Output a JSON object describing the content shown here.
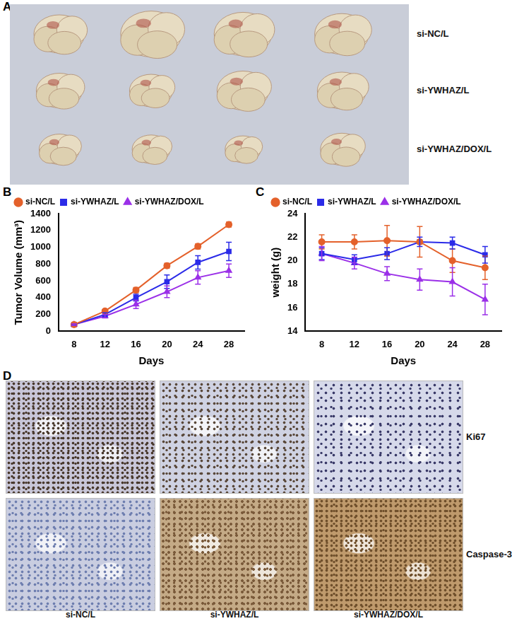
{
  "panels": [
    "A",
    "B",
    "C",
    "D"
  ],
  "tumor_photo": {
    "row_labels": [
      "si-NC/L",
      "si-YWHAZ/L",
      "si-YWHAZ/DOX/L"
    ]
  },
  "ihc_images": {
    "row_labels": [
      "Ki67",
      "Caspase-3"
    ],
    "column_labels": [
      "si-NC/L",
      "si-YWHAZ/L",
      "si-YWHAZ/DOX/L"
    ]
  },
  "chart_data": [
    {
      "type": "line",
      "x_label": "Days",
      "y_label": "Tumor Volume (mm³)",
      "x": [
        8,
        12,
        16,
        20,
        24,
        28
      ],
      "xlim": [
        6,
        30
      ],
      "xticks": [
        8,
        12,
        16,
        20,
        24,
        28
      ],
      "ylim": [
        0,
        1400
      ],
      "yticks": [
        0,
        200,
        400,
        600,
        800,
        1000,
        1200,
        1400
      ],
      "grid": false,
      "legend": "upper left",
      "series": [
        {
          "name": "si-NC/L",
          "color": "#e4612b",
          "marker": "circle",
          "values": [
            80,
            240,
            490,
            780,
            1010,
            1270
          ],
          "errors": [
            10,
            20,
            30,
            30,
            30,
            30
          ]
        },
        {
          "name": "si-YWHAZ/L",
          "color": "#2b2be8",
          "marker": "square",
          "values": [
            80,
            200,
            400,
            590,
            820,
            950
          ],
          "errors": [
            10,
            20,
            40,
            80,
            80,
            110
          ]
        },
        {
          "name": "si-YWHAZ/DOX/L",
          "color": "#9b30e8",
          "marker": "triangle",
          "values": [
            80,
            180,
            320,
            470,
            640,
            720
          ],
          "errors": [
            10,
            20,
            50,
            70,
            80,
            80
          ]
        }
      ]
    },
    {
      "type": "line",
      "x_label": "Days",
      "y_label": "weight (g)",
      "x": [
        8,
        12,
        16,
        20,
        24,
        28
      ],
      "xlim": [
        6,
        30
      ],
      "xticks": [
        8,
        12,
        16,
        20,
        24,
        28
      ],
      "ylim": [
        14,
        24
      ],
      "yticks": [
        14,
        16,
        18,
        20,
        22,
        24
      ],
      "grid": false,
      "legend": "upper left",
      "series": [
        {
          "name": "si-NC/L",
          "color": "#e4612b",
          "marker": "circle",
          "values": [
            21.6,
            21.6,
            21.7,
            21.6,
            20.0,
            19.4
          ],
          "errors": [
            0.6,
            0.6,
            1.3,
            1.3,
            1.0,
            1.0
          ]
        },
        {
          "name": "si-YWHAZ/L",
          "color": "#2b2be8",
          "marker": "square",
          "values": [
            20.6,
            20.1,
            20.6,
            21.6,
            21.5,
            20.5
          ],
          "errors": [
            0.5,
            0.4,
            0.5,
            0.4,
            0.5,
            0.7
          ]
        },
        {
          "name": "si-YWHAZ/DOX/L",
          "color": "#9b30e8",
          "marker": "triangle",
          "values": [
            20.6,
            19.8,
            18.9,
            18.4,
            18.2,
            16.7
          ],
          "errors": [
            0.6,
            0.5,
            0.6,
            0.9,
            1.2,
            1.3
          ]
        }
      ]
    }
  ]
}
